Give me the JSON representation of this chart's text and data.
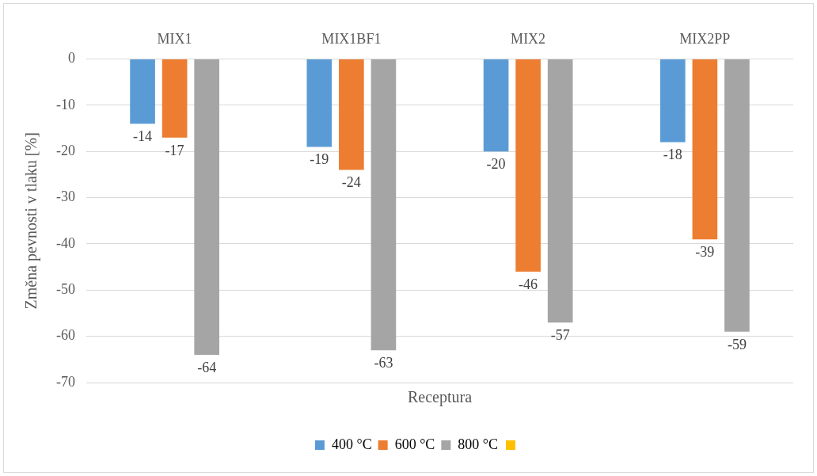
{
  "chart_data": {
    "type": "bar",
    "xlabel": "Receptura",
    "ylabel": "Změna pevnosti v tlaku [%]",
    "categories": [
      "MIX1",
      "MIX1BF1",
      "MIX2",
      "MIX2PP"
    ],
    "series": [
      {
        "name": "400 °C",
        "color": "#5b9bd5",
        "values": [
          -14,
          -19,
          -20,
          -18
        ]
      },
      {
        "name": "600 °C",
        "color": "#ed7d31",
        "values": [
          -17,
          -24,
          -46,
          -39
        ]
      },
      {
        "name": "800 °C",
        "color": "#a5a5a5",
        "values": [
          -64,
          -63,
          -57,
          -59
        ]
      }
    ],
    "ylim": [
      -70,
      0
    ],
    "yticks": [
      -70,
      -60,
      -50,
      -40,
      -30,
      -20,
      -10,
      0
    ],
    "grid": "y",
    "legend": "bottom",
    "data_labels": true
  }
}
